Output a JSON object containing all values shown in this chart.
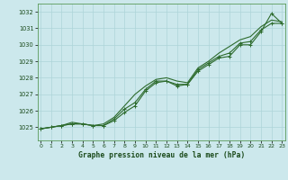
{
  "title": "Graphe pression niveau de la mer (hPa)",
  "background_color": "#cce8ec",
  "grid_color": "#add4d8",
  "line_color": "#2d6b2d",
  "x_ticks": [
    0,
    1,
    2,
    3,
    4,
    5,
    6,
    7,
    8,
    9,
    10,
    11,
    12,
    13,
    14,
    15,
    16,
    17,
    18,
    19,
    20,
    21,
    22,
    23
  ],
  "y_ticks": [
    1025,
    1026,
    1027,
    1028,
    1029,
    1030,
    1031,
    1032
  ],
  "ylim": [
    1024.2,
    1032.5
  ],
  "xlim": [
    -0.3,
    23.3
  ],
  "series1": [
    1024.9,
    1025.0,
    1025.1,
    1025.2,
    1025.2,
    1025.1,
    1025.1,
    1025.4,
    1025.9,
    1026.3,
    1027.2,
    1027.7,
    1027.8,
    1027.6,
    1027.6,
    1028.4,
    1028.8,
    1029.2,
    1029.3,
    1030.0,
    1030.0,
    1030.8,
    1031.9,
    1031.3
  ],
  "series2": [
    1024.9,
    1025.0,
    1025.1,
    1025.2,
    1025.2,
    1025.1,
    1025.1,
    1025.5,
    1026.1,
    1026.5,
    1027.3,
    1027.8,
    1027.8,
    1027.5,
    1027.6,
    1028.5,
    1028.9,
    1029.3,
    1029.5,
    1030.1,
    1030.2,
    1030.9,
    1031.3,
    1031.3
  ],
  "series3": [
    1024.9,
    1025.0,
    1025.1,
    1025.3,
    1025.2,
    1025.1,
    1025.2,
    1025.6,
    1026.3,
    1027.0,
    1027.5,
    1027.9,
    1028.0,
    1027.8,
    1027.7,
    1028.6,
    1029.0,
    1029.5,
    1029.9,
    1030.3,
    1030.5,
    1031.1,
    1031.5,
    1031.4
  ]
}
